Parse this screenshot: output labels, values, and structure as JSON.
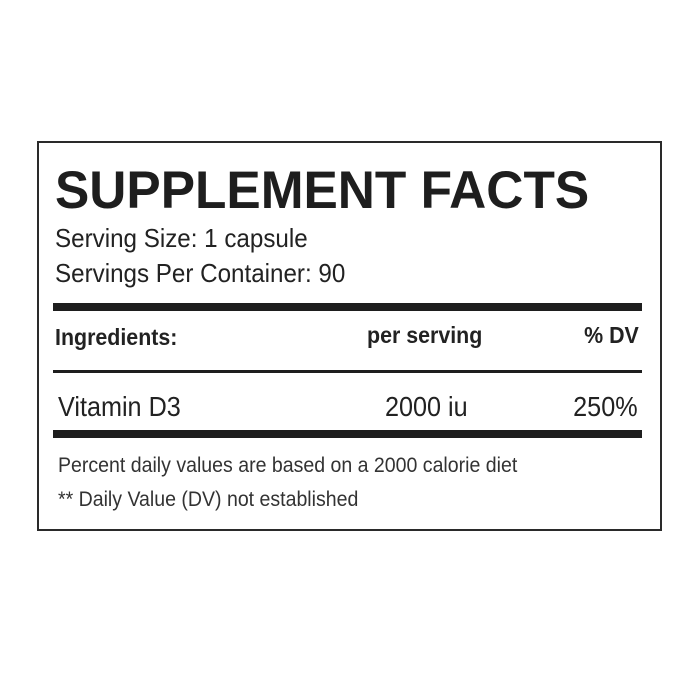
{
  "title": "SUPPLEMENT FACTS",
  "serving_size": "Serving Size: 1 capsule",
  "servings_per_container": "Servings Per Container: 90",
  "table": {
    "headers": [
      "Ingredients:",
      "per serving",
      "% DV"
    ],
    "rows": [
      {
        "ingredient": "Vitamin D3",
        "amount": "2000 iu",
        "dv": "250%"
      }
    ]
  },
  "footnotes": [
    "Percent daily values are based on a 2000 calorie diet",
    "** Daily Value (DV) not established"
  ]
}
